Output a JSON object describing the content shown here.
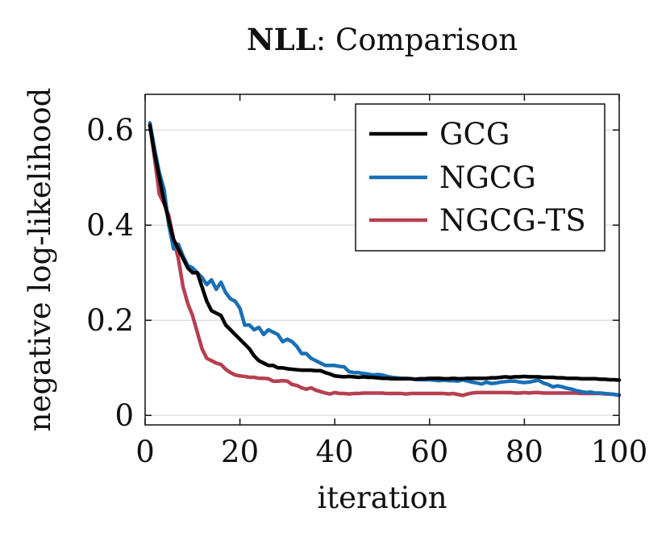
{
  "chart_data": {
    "type": "line",
    "title_bold": "NLL",
    "title_rest": ": Comparison",
    "xlabel": "iteration",
    "ylabel": "negative log-likelihood",
    "xlim": [
      0,
      100
    ],
    "ylim": [
      -0.02,
      0.675
    ],
    "xticks": [
      0,
      20,
      40,
      60,
      80,
      100
    ],
    "xtick_labels": [
      "0",
      "20",
      "40",
      "60",
      "80",
      "100"
    ],
    "yticks": [
      0,
      0.2,
      0.4,
      0.6
    ],
    "ytick_labels": [
      "0",
      "0.2",
      "0.4",
      "0.6"
    ],
    "grid": "horizontal",
    "legend_position": "top-right",
    "series": [
      {
        "name": "GCG",
        "color": "#000000",
        "x": [
          1,
          2,
          3,
          4,
          5,
          6,
          7,
          8,
          9,
          10,
          11,
          12,
          13,
          14,
          15,
          16,
          17,
          18,
          19,
          20,
          21,
          22,
          23,
          24,
          25,
          26,
          27,
          28,
          29,
          30,
          31,
          32,
          33,
          34,
          35,
          36,
          37,
          38,
          39,
          40,
          41,
          42,
          43,
          44,
          45,
          46,
          47,
          48,
          49,
          50,
          51,
          52,
          53,
          54,
          55,
          56,
          57,
          58,
          59,
          60,
          61,
          62,
          63,
          64,
          65,
          66,
          67,
          68,
          69,
          70,
          71,
          72,
          73,
          74,
          75,
          76,
          77,
          78,
          79,
          80,
          81,
          82,
          83,
          84,
          85,
          86,
          87,
          88,
          89,
          90,
          91,
          92,
          93,
          94,
          95,
          96,
          97,
          98,
          99,
          100
        ],
        "values": [
          0.61,
          0.55,
          0.5,
          0.45,
          0.41,
          0.37,
          0.35,
          0.33,
          0.31,
          0.3,
          0.3,
          0.27,
          0.24,
          0.22,
          0.215,
          0.21,
          0.19,
          0.18,
          0.17,
          0.16,
          0.15,
          0.14,
          0.125,
          0.115,
          0.11,
          0.105,
          0.105,
          0.1,
          0.1,
          0.098,
          0.097,
          0.096,
          0.095,
          0.095,
          0.095,
          0.094,
          0.094,
          0.09,
          0.087,
          0.083,
          0.082,
          0.081,
          0.082,
          0.081,
          0.08,
          0.081,
          0.08,
          0.08,
          0.079,
          0.078,
          0.078,
          0.077,
          0.077,
          0.077,
          0.077,
          0.077,
          0.076,
          0.077,
          0.077,
          0.078,
          0.078,
          0.078,
          0.077,
          0.077,
          0.078,
          0.077,
          0.077,
          0.078,
          0.078,
          0.078,
          0.078,
          0.078,
          0.079,
          0.079,
          0.08,
          0.081,
          0.08,
          0.081,
          0.081,
          0.082,
          0.081,
          0.081,
          0.081,
          0.08,
          0.08,
          0.08,
          0.079,
          0.079,
          0.078,
          0.078,
          0.078,
          0.077,
          0.077,
          0.077,
          0.077,
          0.076,
          0.076,
          0.075,
          0.075,
          0.074
        ]
      },
      {
        "name": "NGCG",
        "color": "#1a6fb5",
        "x": [
          1,
          2,
          3,
          4,
          5,
          6,
          7,
          8,
          9,
          10,
          11,
          12,
          13,
          14,
          15,
          16,
          17,
          18,
          19,
          20,
          21,
          22,
          23,
          24,
          25,
          26,
          27,
          28,
          29,
          30,
          31,
          32,
          33,
          34,
          35,
          36,
          37,
          38,
          39,
          40,
          41,
          42,
          43,
          44,
          45,
          46,
          47,
          48,
          49,
          50,
          51,
          52,
          53,
          54,
          55,
          56,
          57,
          58,
          59,
          60,
          61,
          62,
          63,
          64,
          65,
          66,
          67,
          68,
          69,
          70,
          71,
          72,
          73,
          74,
          75,
          76,
          77,
          78,
          79,
          80,
          81,
          82,
          83,
          84,
          85,
          86,
          87,
          88,
          89,
          90,
          91,
          92,
          93,
          94,
          95,
          96,
          97,
          98,
          99,
          100
        ],
        "values": [
          0.615,
          0.56,
          0.51,
          0.475,
          0.4,
          0.35,
          0.36,
          0.335,
          0.315,
          0.31,
          0.3,
          0.29,
          0.275,
          0.285,
          0.265,
          0.28,
          0.258,
          0.245,
          0.24,
          0.225,
          0.19,
          0.19,
          0.18,
          0.185,
          0.17,
          0.18,
          0.175,
          0.17,
          0.155,
          0.16,
          0.155,
          0.145,
          0.13,
          0.13,
          0.12,
          0.115,
          0.11,
          0.105,
          0.105,
          0.105,
          0.103,
          0.102,
          0.092,
          0.09,
          0.09,
          0.088,
          0.087,
          0.085,
          0.086,
          0.085,
          0.082,
          0.08,
          0.079,
          0.078,
          0.078,
          0.077,
          0.076,
          0.075,
          0.075,
          0.075,
          0.074,
          0.073,
          0.074,
          0.073,
          0.073,
          0.072,
          0.075,
          0.072,
          0.07,
          0.068,
          0.066,
          0.07,
          0.067,
          0.068,
          0.07,
          0.071,
          0.072,
          0.072,
          0.07,
          0.069,
          0.07,
          0.072,
          0.074,
          0.068,
          0.065,
          0.06,
          0.062,
          0.06,
          0.057,
          0.055,
          0.052,
          0.05,
          0.048,
          0.049,
          0.047,
          0.047,
          0.046,
          0.045,
          0.044,
          0.043
        ]
      },
      {
        "name": "NGCG-TS",
        "color": "#b5404f",
        "x": [
          1,
          2,
          3,
          4,
          5,
          6,
          7,
          8,
          9,
          10,
          11,
          12,
          13,
          14,
          15,
          16,
          17,
          18,
          19,
          20,
          21,
          22,
          23,
          24,
          25,
          26,
          27,
          28,
          29,
          30,
          31,
          32,
          33,
          34,
          35,
          36,
          37,
          38,
          39,
          40,
          41,
          42,
          43,
          44,
          45,
          46,
          47,
          48,
          49,
          50,
          51,
          52,
          53,
          54,
          55,
          56,
          57,
          58,
          59,
          60,
          61,
          62,
          63,
          64,
          65,
          66,
          67,
          68,
          69,
          70,
          71,
          72,
          73,
          74,
          75,
          76,
          77,
          78,
          79,
          80,
          81,
          82,
          83,
          84,
          85,
          86,
          87,
          88,
          89,
          90,
          91,
          92,
          93,
          94,
          95,
          96,
          97,
          98,
          99,
          100
        ],
        "values": [
          0.61,
          0.54,
          0.465,
          0.445,
          0.42,
          0.37,
          0.33,
          0.27,
          0.235,
          0.21,
          0.175,
          0.14,
          0.12,
          0.115,
          0.11,
          0.107,
          0.097,
          0.09,
          0.085,
          0.083,
          0.082,
          0.08,
          0.08,
          0.078,
          0.078,
          0.077,
          0.072,
          0.072,
          0.073,
          0.072,
          0.065,
          0.063,
          0.058,
          0.055,
          0.058,
          0.053,
          0.05,
          0.047,
          0.045,
          0.048,
          0.046,
          0.046,
          0.045,
          0.046,
          0.046,
          0.047,
          0.047,
          0.047,
          0.047,
          0.047,
          0.046,
          0.046,
          0.046,
          0.046,
          0.045,
          0.046,
          0.046,
          0.046,
          0.046,
          0.046,
          0.046,
          0.046,
          0.046,
          0.045,
          0.046,
          0.044,
          0.042,
          0.045,
          0.047,
          0.048,
          0.048,
          0.048,
          0.048,
          0.048,
          0.048,
          0.048,
          0.048,
          0.047,
          0.047,
          0.048,
          0.047,
          0.048,
          0.048,
          0.047,
          0.047,
          0.047,
          0.047,
          0.047,
          0.047,
          0.047,
          0.047,
          0.046,
          0.046,
          0.046,
          0.046,
          0.046,
          0.045,
          0.045,
          0.044,
          0.042
        ]
      }
    ]
  }
}
